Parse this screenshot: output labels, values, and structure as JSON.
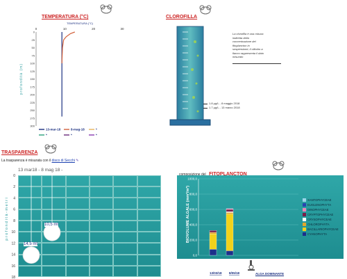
{
  "temperatura": {
    "title": "TEMPERATURA (°C)",
    "axis_top_label": "TEMPERATURA (°C)",
    "x_ticks": [
      "0",
      "10",
      "20",
      "30"
    ],
    "y_label": "profondità (m)",
    "y_ticks": [
      "0",
      "25",
      "50",
      "75",
      "100",
      "125",
      "150",
      "175",
      "200",
      "225",
      "250",
      "275",
      "300"
    ],
    "legend": [
      "13-mar-18",
      "8-mag-18",
      "*",
      "*",
      "*",
      "*"
    ]
  },
  "clorofilla": {
    "title": "CLOROFILLA",
    "description": "La clorofilla è una misura indiretta della concentrazione del fitoplancton in sospensione; il cilindro a fianco rappresenta il dato misurato",
    "reading1": "1.8 µg/L - 8 maggio 2018",
    "reading2": "1.7 µg/L - 13 marzo 2018"
  },
  "trasparenza": {
    "title": "TRASPARENZA",
    "intro_text": "La trasparenza è misurata con il",
    "link_text": "disco di Secchi",
    "date_header": "13 mar18 - 8 mag 18 -",
    "y_label": "p r o f o n d i t à  -  m e t r i",
    "y_ticks": [
      "0",
      "2",
      "4",
      "6",
      "8",
      "10",
      "12",
      "14",
      "16",
      "18"
    ],
    "disk1_label": "10,5 mt",
    "disk2_label": "14,5 mt"
  },
  "fitoplancton": {
    "heading_prefix": "composizione del",
    "heading": "FITOPLANCTON",
    "y_label": "BIOVOLUME ALGALE (mm³/m³)",
    "y_ticks": [
      "0,0",
      "200,0",
      "400,0",
      "600,0",
      "800,0",
      "1000,0"
    ],
    "x_labels": [
      "13/03/18",
      "8/05/18"
    ],
    "dominant_label": "ALGA DOMINANTE"
  },
  "chart_data": [
    {
      "type": "line",
      "title": "TEMPERATURA (°C)",
      "xlabel": "TEMPERATURA (°C)",
      "ylabel": "profondità (m)",
      "xlim": [
        0,
        30
      ],
      "ylim": [
        300,
        0
      ],
      "series": [
        {
          "name": "13-mar-18",
          "color": "#1a2f80",
          "points": [
            [
              9.0,
              0
            ],
            [
              9.0,
              50
            ],
            [
              9.0,
              100
            ],
            [
              9.0,
              150
            ],
            [
              9.0,
              200
            ],
            [
              9.0,
              250
            ],
            [
              9.0,
              270
            ]
          ]
        },
        {
          "name": "8-mag-18",
          "color": "#d2603a",
          "points": [
            [
              13.5,
              0
            ],
            [
              12.0,
              5
            ],
            [
              10.5,
              15
            ],
            [
              9.6,
              25
            ],
            [
              9.2,
              50
            ],
            [
              9.0,
              100
            ]
          ]
        }
      ]
    },
    {
      "type": "bar",
      "title": "",
      "xlabel": "",
      "ylabel": "BIOVOLUME ALGALE (mm³/m³)",
      "ylim": [
        0,
        1000
      ],
      "categories": [
        "13/03/18",
        "8/05/18"
      ],
      "series": [
        {
          "name": "CYANOPHYTA",
          "color": "#1d2f8a",
          "values": [
            80,
            60
          ]
        },
        {
          "name": "BACILLARIOPHYCEAE",
          "color": "#f2d21b",
          "values": [
            200,
            480
          ]
        },
        {
          "name": "CHLOROPHYTA",
          "color": "#e2a62a",
          "values": [
            20,
            20
          ]
        },
        {
          "name": "CRYSOPHYCEAE",
          "color": "#ffffff",
          "values": [
            0,
            10
          ]
        },
        {
          "name": "CRYPTOPHYCEAE",
          "color": "#7a1e4a",
          "values": [
            25,
            30
          ]
        },
        {
          "name": "DINOPHYCEAE",
          "color": "#e888b8",
          "values": [
            0,
            10
          ]
        },
        {
          "name": "EUGLENOPHYTA",
          "color": "#2a44b0",
          "values": [
            0,
            0
          ]
        },
        {
          "name": "XANTOPHYCEAE",
          "color": "#9ad4e8",
          "values": [
            0,
            0
          ]
        }
      ]
    }
  ]
}
